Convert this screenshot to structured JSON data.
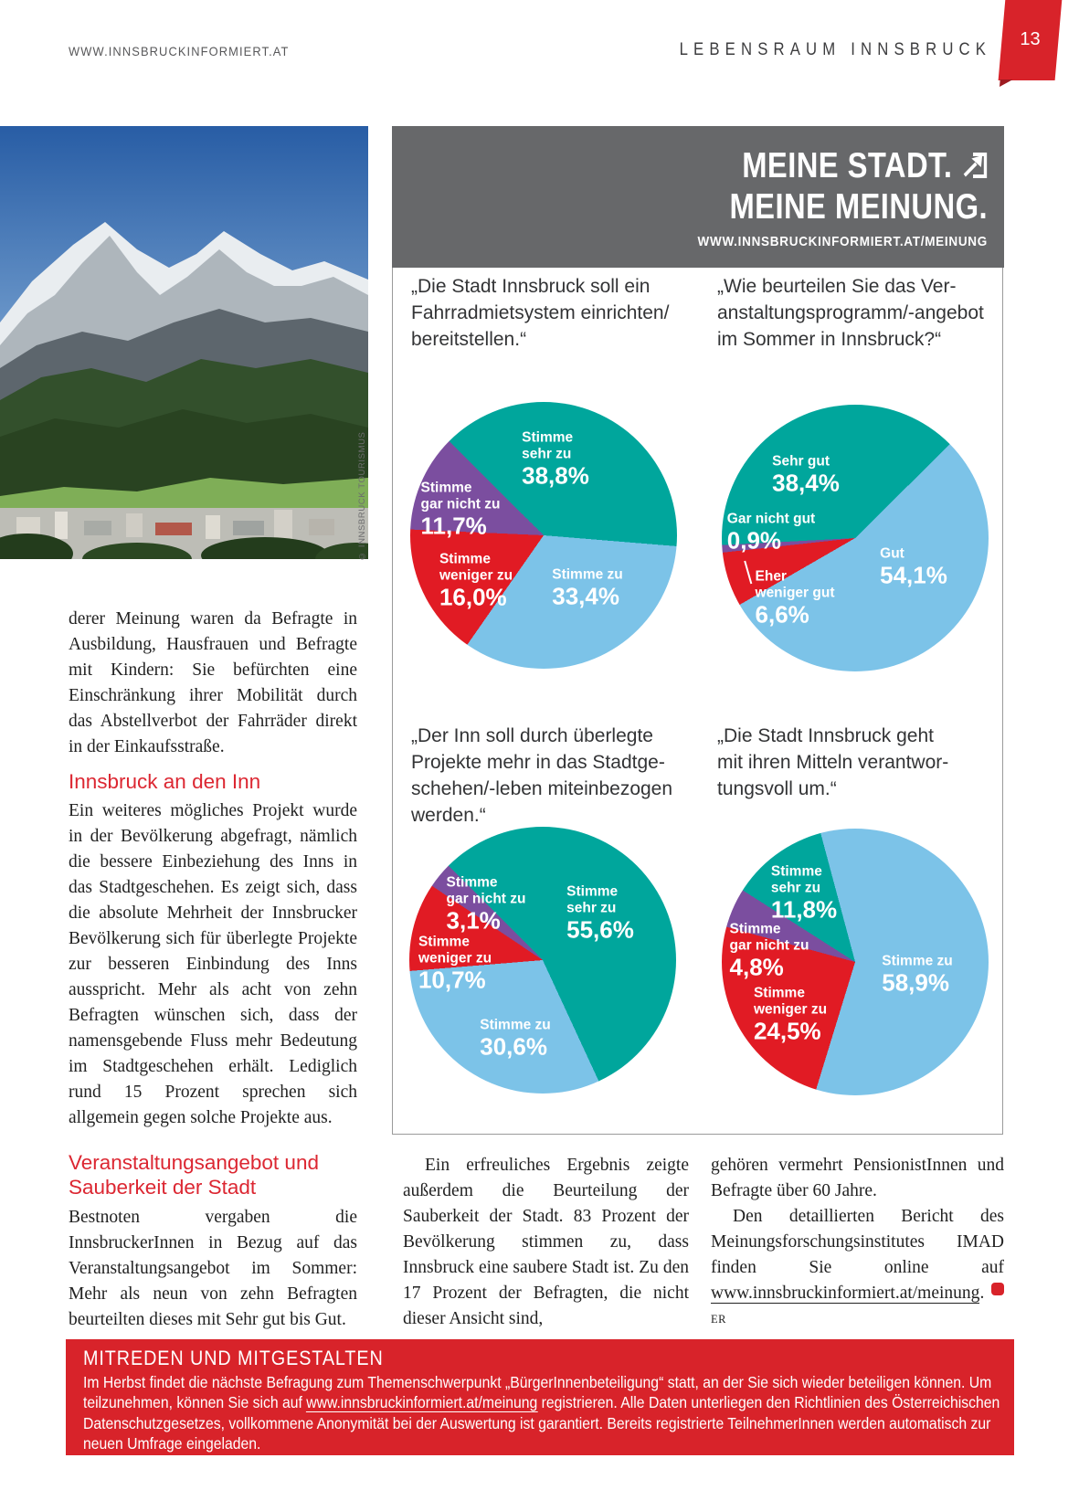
{
  "header": {
    "site_url": "WWW.INNSBRUCKINFORMIERT.AT",
    "section": "LEBENSRAUM INNSBRUCK",
    "page_number": "13"
  },
  "photo": {
    "credit": "© INNSBRUCK TOURISMUS"
  },
  "survey_banner": {
    "title_line1": "MEINE STADT.",
    "title_line2": "MEINE MEINUNG.",
    "url": "WWW.INNSBRUCKINFORMIERT.AT/MEINUNG"
  },
  "chart_data": [
    {
      "type": "pie",
      "question": "„Die Stadt Innsbruck soll ein\nFahrradmietsystem einrichten/\nbereitstellen.“",
      "start_angle": 315,
      "slices": [
        {
          "label": "Stimme\nsehr zu",
          "value": 38.8,
          "display": "38,8%",
          "color": "#00a69c"
        },
        {
          "label": "Stimme zu",
          "value": 33.4,
          "display": "33,4%",
          "color": "#7cc3e8"
        },
        {
          "label": "Stimme\nweniger zu",
          "value": 16.0,
          "display": "16,0%",
          "color": "#e11b24"
        },
        {
          "label": "Stimme\ngar nicht zu",
          "value": 11.7,
          "display": "11,7%",
          "color": "#7b4e9f"
        }
      ]
    },
    {
      "type": "pie",
      "question": "„Wie beurteilen Sie das Ver-\nanstaltungsprogramm/-angebot\nim Sommer in Innsbruck?“",
      "start_angle": 267,
      "slices": [
        {
          "label": "Sehr gut",
          "value": 38.4,
          "display": "38,4%",
          "color": "#00a69c"
        },
        {
          "label": "Gut",
          "value": 54.1,
          "display": "54,1%",
          "color": "#7cc3e8"
        },
        {
          "label": "Eher\nweniger gut",
          "value": 6.6,
          "display": "6,6%",
          "color": "#e11b24"
        },
        {
          "label": "Gar nicht gut",
          "value": 0.9,
          "display": "0,9%",
          "color": "#7b4e9f"
        }
      ]
    },
    {
      "type": "pie",
      "question": "„Der Inn soll durch überlegte\nProjekte mehr in das Stadtge-\nschehen/-leben miteinbezogen\nwerden.“",
      "start_angle": 315,
      "slices": [
        {
          "label": "Stimme\nsehr zu",
          "value": 55.6,
          "display": "55,6%",
          "color": "#00a69c"
        },
        {
          "label": "Stimme zu",
          "value": 30.6,
          "display": "30,6%",
          "color": "#7cc3e8"
        },
        {
          "label": "Stimme\nweniger zu",
          "value": 10.7,
          "display": "10,7%",
          "color": "#e11b24"
        },
        {
          "label": "Stimme\ngar nicht zu",
          "value": 3.1,
          "display": "3,1%",
          "color": "#7b4e9f"
        }
      ]
    },
    {
      "type": "pie",
      "question": "„Die Stadt Innsbruck geht\nmit ihren Mitteln verantwor-\ntungsvoll um.“",
      "start_angle": 345,
      "slices": [
        {
          "label": "Stimme zu",
          "value": 58.9,
          "display": "58,9%",
          "color": "#7cc3e8"
        },
        {
          "label": "Stimme\nweniger zu",
          "value": 24.5,
          "display": "24,5%",
          "color": "#e11b24"
        },
        {
          "label": "Stimme\ngar nicht zu",
          "value": 4.8,
          "display": "4,8%",
          "color": "#7b4e9f"
        },
        {
          "label": "Stimme\nsehr zu",
          "value": 11.8,
          "display": "11,8%",
          "color": "#00a69c"
        }
      ]
    }
  ],
  "article": {
    "col1_paragraph1": "derer Meinung waren da Befragte in Ausbildung, Hausfrauen und Befragte mit Kindern: Sie befürchten eine Einschränkung ihrer Mobilität durch das Abstellverbot der Fahrräder direkt in der Einkaufsstraße.",
    "heading1": "Innsbruck an den Inn",
    "col1_paragraph2": "Ein weiteres mögliches Projekt wurde in der Bevölkerung abgefragt, nämlich die bessere Einbeziehung des Inns in das Stadtgeschehen. Es zeigt sich, dass die absolute Mehrheit der Innsbrucker Bevölkerung sich für überlegte Projekte zur besseren Einbindung des Inns ausspricht. Mehr als acht von zehn Befragten wünschen sich, dass der namensgebende Fluss mehr Bedeutung im Stadtgeschehen erhält. Lediglich rund 15 Prozent sprechen sich allgemein gegen solche Projekte aus.",
    "heading2": "Veranstaltungsangebot und Sauberkeit der Stadt",
    "col1_paragraph3": "Bestnoten vergaben die InnsbruckerInnen in Bezug auf das Veranstaltungsangebot im Sommer: Mehr als neun von zehn Befragten beurteilten dieses mit Sehr gut bis Gut.",
    "col2_paragraph": "Ein erfreuliches Ergebnis zeigte außerdem die Beurteilung der Sauberkeit der Stadt. 83 Prozent der Bevölkerung stimmen zu, dass Innsbruck eine saubere Stadt ist. Zu den 17 Prozent der Befragten, die nicht dieser Ansicht sind,",
    "col3_paragraph1": "gehören vermehrt PensionistInnen und Befragte über 60 Jahre.",
    "col3_before_link": "Den detaillierten Bericht des Meinungsforschungsinstitutes IMAD finden Sie online auf ",
    "col3_link": "www.innsbruckinformiert.at/meinung",
    "col3_after_link": ". ",
    "author_initials": "ER"
  },
  "footer_box": {
    "title": "MITREDEN UND MITGESTALTEN",
    "text_before_link": "Im Herbst findet die nächste Befragung zum Themenschwerpunkt „BürgerInnenbeteiligung“ statt, an der Sie sich wieder beteiligen können. Um teilzunehmen, können Sie sich auf ",
    "link": "www.innsbruckinformiert.at/meinung",
    "text_after_link": " registrieren. Alle Daten unterliegen den Richtlinien des Österreichischen Datenschutzgesetzes, vollkommene Anonymität bei der Auswertung ist garantiert. Bereits registrierte TeilnehmerInnen werden automatisch zur neuen Umfrage eingeladen."
  },
  "colors": {
    "accent_red": "#d8232a",
    "heading_red": "#dc2732",
    "banner_gray": "#67686a",
    "teal": "#00a69c",
    "light_blue": "#7cc3e8",
    "red": "#e11b24",
    "purple": "#7b4e9f"
  }
}
